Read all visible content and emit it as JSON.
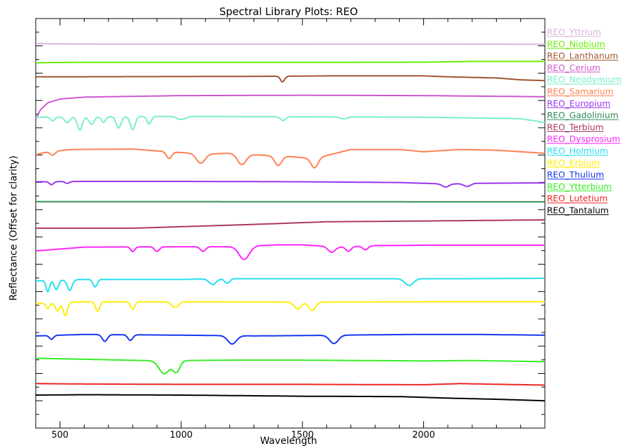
{
  "chart_data": {
    "type": "line",
    "title": "Spectral Library Plots: REO",
    "xlabel": "Wavelength",
    "ylabel": "Reflectance (Offset for clarity)",
    "xlim": [
      400,
      2500
    ],
    "xticks": [
      500,
      1000,
      1500,
      2000
    ],
    "x_minor_step": 100,
    "ytick_count": 30,
    "grid": false,
    "legend_position": "right",
    "series": [
      {
        "name": "REO_Yttrium",
        "color": "#dab2d9",
        "band": 1,
        "base": [
          [
            400,
            0.35
          ],
          [
            600,
            0.48
          ],
          [
            1000,
            0.5
          ],
          [
            1500,
            0.52
          ],
          [
            2000,
            0.5
          ],
          [
            2500,
            0.55
          ]
        ],
        "dips": []
      },
      {
        "name": "REO_Niobium",
        "color": "#66ee00",
        "band": 2,
        "base": [
          [
            400,
            1.2
          ],
          [
            450,
            1.1
          ],
          [
            600,
            1.05
          ],
          [
            1000,
            1.05
          ],
          [
            1500,
            1.05
          ],
          [
            2000,
            1.0
          ],
          [
            2200,
            0.8
          ],
          [
            2500,
            0.8
          ]
        ],
        "dips": []
      },
      {
        "name": "REO_Lanthanum",
        "color": "#a0522d",
        "band": 3,
        "base": [
          [
            400,
            0.6
          ],
          [
            800,
            0.55
          ],
          [
            1200,
            0.5
          ],
          [
            1400,
            0.45
          ],
          [
            1600,
            0.35
          ],
          [
            2000,
            0.35
          ],
          [
            2100,
            0.6
          ],
          [
            2300,
            0.9
          ],
          [
            2400,
            1.4
          ],
          [
            2500,
            1.6
          ]
        ],
        "dips": [
          [
            1418,
            12,
            1.5
          ]
        ]
      },
      {
        "name": "REO_Cerium",
        "color": "#cc55cc",
        "band": 4,
        "base": [
          [
            400,
            7.5
          ],
          [
            420,
            5
          ],
          [
            450,
            3.2
          ],
          [
            500,
            2.2
          ],
          [
            600,
            1.7
          ],
          [
            800,
            1.5
          ],
          [
            1000,
            1.3
          ],
          [
            1500,
            1.2
          ],
          [
            2000,
            1.3
          ],
          [
            2500,
            1.6
          ]
        ],
        "dips": []
      },
      {
        "name": "REO_Neodymium",
        "color": "#77eecc",
        "band": 5.5,
        "base": [
          [
            400,
            0.6
          ],
          [
            900,
            0.4
          ],
          [
            1100,
            0.4
          ],
          [
            1500,
            0.5
          ],
          [
            2000,
            0.6
          ],
          [
            2400,
            1.0
          ],
          [
            2500,
            2.0
          ]
        ],
        "dips": [
          [
            470,
            12,
            1.0
          ],
          [
            530,
            15,
            1.5
          ],
          [
            582,
            14,
            3.5
          ],
          [
            630,
            15,
            2
          ],
          [
            680,
            12,
            1.5
          ],
          [
            742,
            14,
            3
          ],
          [
            800,
            14,
            3.5
          ],
          [
            868,
            12,
            2
          ],
          [
            1000,
            25,
            0.8
          ],
          [
            1420,
            15,
            1
          ],
          [
            1670,
            20,
            0.5
          ]
        ]
      },
      {
        "name": "REO_Samarium",
        "color": "#ff7f50",
        "band": 7.5,
        "base": [
          [
            400,
            2.0
          ],
          [
            450,
            1.2
          ],
          [
            550,
            0.6
          ],
          [
            800,
            0.5
          ],
          [
            950,
            1.2
          ],
          [
            1100,
            1.8
          ],
          [
            1200,
            1.6
          ],
          [
            1300,
            2.0
          ],
          [
            1450,
            2.5
          ],
          [
            1550,
            3.0
          ],
          [
            1700,
            0.6
          ],
          [
            1900,
            0.6
          ],
          [
            2000,
            1.2
          ],
          [
            2150,
            0.6
          ],
          [
            2300,
            0.8
          ],
          [
            2500,
            1.6
          ]
        ],
        "dips": [
          [
            470,
            15,
            1.0
          ],
          [
            950,
            15,
            1.8
          ],
          [
            1080,
            25,
            2.5
          ],
          [
            1250,
            25,
            2.8
          ],
          [
            1400,
            20,
            2.5
          ],
          [
            1550,
            20,
            2.5
          ]
        ]
      },
      {
        "name": "REO_Europium",
        "color": "#9933ee",
        "band": 9.5,
        "base": [
          [
            400,
            0.6
          ],
          [
            600,
            0.5
          ],
          [
            1000,
            0.5
          ],
          [
            1500,
            0.6
          ],
          [
            1900,
            0.8
          ],
          [
            2100,
            1.2
          ],
          [
            2200,
            1.0
          ],
          [
            2500,
            0.9
          ]
        ],
        "dips": [
          [
            465,
            12,
            0.8
          ],
          [
            530,
            12,
            0.5
          ],
          [
            2090,
            20,
            0.8
          ],
          [
            2180,
            20,
            0.8
          ]
        ]
      },
      {
        "name": "REO_Gadolinium",
        "color": "#2e8b57",
        "band": 10.8,
        "base": [
          [
            400,
            0.3
          ],
          [
            2500,
            0.35
          ]
        ],
        "dips": []
      },
      {
        "name": "REO_Terbium",
        "color": "#aa3366",
        "band": 12,
        "base": [
          [
            400,
            2.2
          ],
          [
            800,
            2.2
          ],
          [
            1000,
            1.8
          ],
          [
            1300,
            1.2
          ],
          [
            1600,
            0.5
          ],
          [
            2000,
            0.3
          ],
          [
            2500,
            0.0
          ]
        ],
        "dips": []
      },
      {
        "name": "REO_Dysprosium",
        "color": "#ff22ff",
        "band": 13.5,
        "base": [
          [
            400,
            1.8
          ],
          [
            600,
            0.8
          ],
          [
            1000,
            0.7
          ],
          [
            1200,
            0.7
          ],
          [
            1400,
            0.2
          ],
          [
            1500,
            0.2
          ],
          [
            1650,
            0.8
          ],
          [
            1800,
            0.4
          ],
          [
            2000,
            0.3
          ],
          [
            2500,
            0.3
          ]
        ],
        "dips": [
          [
            800,
            12,
            1.2
          ],
          [
            900,
            14,
            1.2
          ],
          [
            1090,
            15,
            1.2
          ],
          [
            1260,
            30,
            3.5
          ],
          [
            1620,
            20,
            1.5
          ],
          [
            1690,
            15,
            1.2
          ],
          [
            1760,
            15,
            1.0
          ]
        ]
      },
      {
        "name": "REO_Holmium",
        "color": "#22ddee",
        "band": 15.5,
        "base": [
          [
            400,
            1.2
          ],
          [
            600,
            0.8
          ],
          [
            1000,
            0.8
          ],
          [
            1200,
            0.6
          ],
          [
            1500,
            0.6
          ],
          [
            1800,
            0.6
          ],
          [
            2000,
            0.6
          ],
          [
            2200,
            0.6
          ],
          [
            2500,
            0.5
          ]
        ],
        "dips": [
          [
            450,
            10,
            3.0
          ],
          [
            485,
            12,
            2.5
          ],
          [
            540,
            14,
            2.8
          ],
          [
            645,
            12,
            2
          ],
          [
            1130,
            20,
            1.5
          ],
          [
            1190,
            15,
            1.2
          ],
          [
            1940,
            25,
            1.8
          ]
        ]
      },
      {
        "name": "REO_Erbium",
        "color": "#ffee00",
        "band": 17,
        "base": [
          [
            400,
            0.8
          ],
          [
            600,
            0.3
          ],
          [
            1000,
            0.3
          ],
          [
            1500,
            0.4
          ],
          [
            2000,
            0.3
          ],
          [
            2500,
            0.3
          ]
        ],
        "dips": [
          [
            450,
            10,
            1.5
          ],
          [
            490,
            12,
            2.2
          ],
          [
            522,
            12,
            3.5
          ],
          [
            655,
            12,
            2.5
          ],
          [
            800,
            12,
            2
          ],
          [
            975,
            20,
            1.5
          ],
          [
            1480,
            20,
            1.8
          ],
          [
            1540,
            20,
            2.2
          ]
        ]
      },
      {
        "name": "REO_Thulium",
        "color": "#1133ee",
        "band": 19,
        "base": [
          [
            400,
            0.8
          ],
          [
            600,
            0.4
          ],
          [
            1000,
            0.6
          ],
          [
            1300,
            0.8
          ],
          [
            1500,
            0.7
          ],
          [
            1800,
            0.5
          ],
          [
            2000,
            0.4
          ],
          [
            2200,
            0.4
          ],
          [
            2500,
            0.6
          ]
        ],
        "dips": [
          [
            465,
            12,
            1.0
          ],
          [
            685,
            15,
            1.8
          ],
          [
            790,
            14,
            1.5
          ],
          [
            1210,
            25,
            2.2
          ],
          [
            1630,
            25,
            2.2
          ]
        ]
      },
      {
        "name": "REO_Ytterbium",
        "color": "#33ee22",
        "band": 20.5,
        "base": [
          [
            400,
            0.3
          ],
          [
            700,
            0.7
          ],
          [
            850,
            0.9
          ],
          [
            1000,
            0.9
          ],
          [
            1200,
            0.8
          ],
          [
            1500,
            0.8
          ],
          [
            2000,
            1.0
          ],
          [
            2200,
            0.9
          ],
          [
            2500,
            1.2
          ]
        ],
        "dips": [
          [
            930,
            30,
            3.5
          ],
          [
            980,
            20,
            3.0
          ]
        ]
      },
      {
        "name": "REO_Lutetium",
        "color": "#ee2222",
        "band": 22,
        "base": [
          [
            400,
            0.6
          ],
          [
            600,
            0.7
          ],
          [
            1000,
            0.8
          ],
          [
            1500,
            0.8
          ],
          [
            2000,
            0.9
          ],
          [
            2150,
            0.6
          ],
          [
            2500,
            1.0
          ]
        ],
        "dips": []
      },
      {
        "name": "REO_Tantalum",
        "color": "#000000",
        "band": 22.5,
        "base": [
          [
            400,
            1.5
          ],
          [
            600,
            1.4
          ],
          [
            1000,
            1.5
          ],
          [
            1500,
            1.8
          ],
          [
            1900,
            1.9
          ],
          [
            2100,
            2.3
          ],
          [
            2300,
            2.6
          ],
          [
            2500,
            3.0
          ]
        ],
        "dips": []
      }
    ]
  }
}
